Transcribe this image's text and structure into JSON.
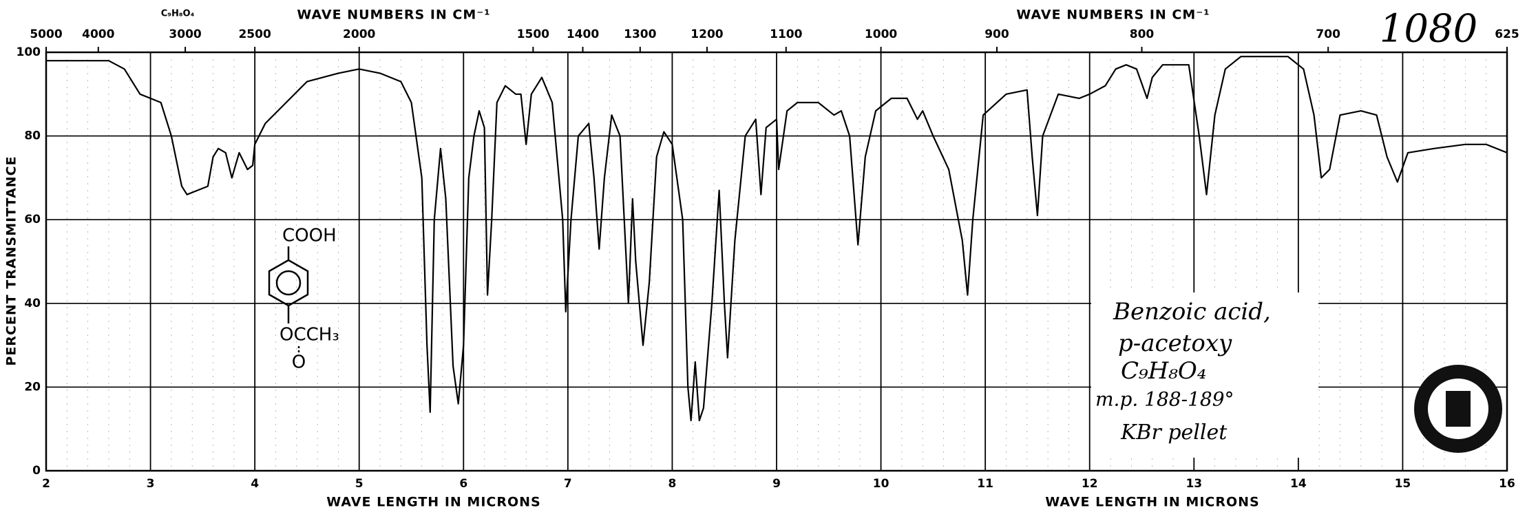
{
  "chart_data": {
    "type": "line",
    "title_formula": "C₉H₈O₄",
    "top_axis_label": [
      "WAVE NUMBERS IN CM⁻¹",
      "WAVE NUMBERS IN CM⁻¹"
    ],
    "x_label": [
      "WAVE LENGTH IN MICRONS",
      "WAVE LENGTH IN MICRONS"
    ],
    "y_label": "PERCENT TRANSMITTANCE",
    "catalog_number": "1080",
    "structure": {
      "top": "COOH",
      "bottom": "OCCH₃",
      "carbonyl": "O"
    },
    "annotation": [
      "Benzoic acid,",
      "p-acetoxy",
      "C₉H₈O₄",
      "m.p. 188-189°",
      "KBr pellet"
    ],
    "color": "#000000",
    "grid": true,
    "xlim": [
      2,
      16
    ],
    "ylim": [
      0,
      100
    ],
    "xticks": [
      2,
      3,
      4,
      5,
      6,
      7,
      8,
      9,
      10,
      11,
      12,
      13,
      14,
      15,
      16
    ],
    "yticks": [
      0,
      20,
      40,
      60,
      80,
      100
    ],
    "x2ticks": [
      5000,
      4000,
      3000,
      2500,
      2000,
      1500,
      1400,
      1300,
      1200,
      1100,
      1000,
      900,
      800,
      700,
      625
    ],
    "x": [
      2.0,
      2.6,
      2.75,
      2.9,
      3.0,
      3.1,
      3.2,
      3.3,
      3.35,
      3.45,
      3.55,
      3.6,
      3.65,
      3.72,
      3.78,
      3.85,
      3.93,
      3.98,
      4.0,
      4.1,
      4.3,
      4.5,
      4.8,
      5.0,
      5.2,
      5.4,
      5.5,
      5.6,
      5.65,
      5.68,
      5.72,
      5.78,
      5.83,
      5.9,
      5.95,
      6.0,
      6.05,
      6.1,
      6.15,
      6.2,
      6.23,
      6.27,
      6.32,
      6.4,
      6.5,
      6.55,
      6.6,
      6.65,
      6.75,
      6.85,
      6.95,
      6.98,
      7.03,
      7.1,
      7.2,
      7.25,
      7.3,
      7.35,
      7.42,
      7.5,
      7.58,
      7.62,
      7.65,
      7.72,
      7.78,
      7.85,
      7.92,
      8.0,
      8.1,
      8.15,
      8.18,
      8.22,
      8.26,
      8.3,
      8.38,
      8.45,
      8.5,
      8.53,
      8.6,
      8.7,
      8.8,
      8.85,
      8.9,
      9.0,
      9.02,
      9.1,
      9.2,
      9.4,
      9.55,
      9.62,
      9.7,
      9.78,
      9.85,
      9.95,
      10.1,
      10.25,
      10.35,
      10.4,
      10.5,
      10.65,
      10.78,
      10.83,
      10.88,
      10.98,
      11.2,
      11.4,
      11.45,
      11.5,
      11.55,
      11.7,
      11.9,
      12.0,
      12.15,
      12.25,
      12.35,
      12.45,
      12.55,
      12.6,
      12.7,
      12.95,
      13.05,
      13.12,
      13.2,
      13.3,
      13.45,
      13.9,
      14.05,
      14.15,
      14.22,
      14.3,
      14.4,
      14.6,
      14.75,
      14.85,
      14.95,
      15.05,
      15.3,
      15.6,
      15.8,
      16.0
    ],
    "values": [
      98,
      98,
      96,
      90,
      89,
      88,
      80,
      68,
      66,
      67,
      68,
      75,
      77,
      76,
      70,
      76,
      72,
      73,
      78,
      83,
      88,
      93,
      95,
      96,
      95,
      93,
      88,
      70,
      30,
      14,
      60,
      77,
      65,
      25,
      16,
      30,
      70,
      80,
      86,
      82,
      42,
      60,
      88,
      92,
      90,
      90,
      78,
      90,
      94,
      88,
      60,
      38,
      60,
      80,
      83,
      70,
      53,
      70,
      85,
      80,
      40,
      65,
      50,
      30,
      45,
      75,
      81,
      78,
      60,
      20,
      12,
      26,
      12,
      15,
      40,
      67,
      40,
      27,
      55,
      80,
      84,
      66,
      82,
      84,
      72,
      86,
      88,
      88,
      85,
      86,
      80,
      54,
      75,
      86,
      89,
      89,
      84,
      86,
      80,
      72,
      55,
      42,
      60,
      85,
      90,
      91,
      75,
      61,
      80,
      90,
      89,
      90,
      92,
      96,
      97,
      96,
      89,
      94,
      97,
      97,
      80,
      66,
      85,
      96,
      99,
      99,
      96,
      85,
      70,
      72,
      85,
      86,
      85,
      75,
      69,
      76,
      77,
      78,
      78,
      76
    ]
  }
}
